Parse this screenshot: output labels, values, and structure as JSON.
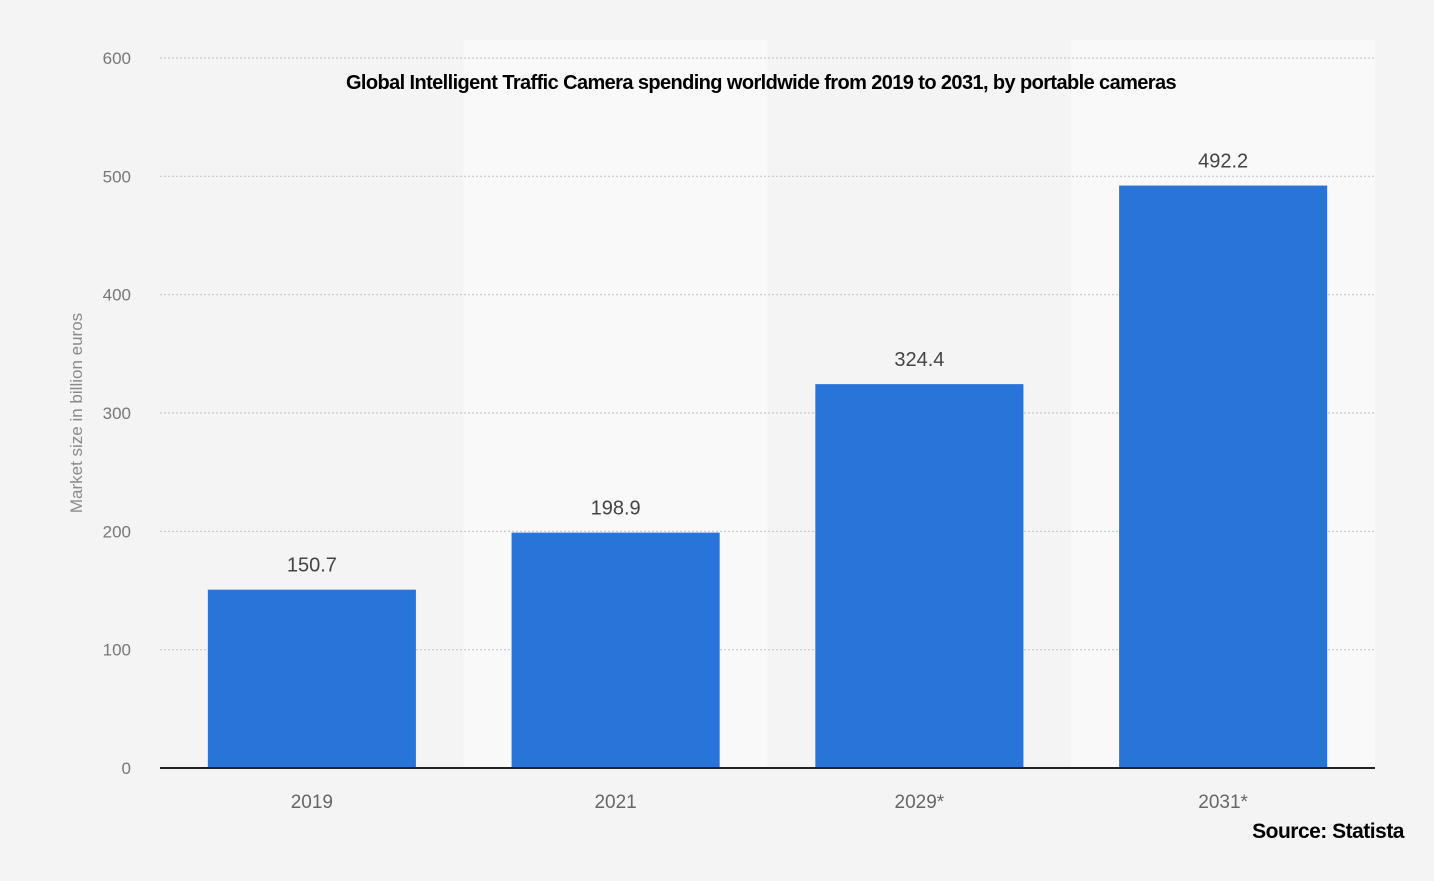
{
  "chart_data": {
    "type": "bar",
    "title": "Global Intelligent Traffic Camera spending worldwide from 2019 to 2031, by portable cameras",
    "xlabel": "",
    "ylabel": "Market size in billion euros",
    "categories": [
      "2019",
      "2021",
      "2029*",
      "2031*"
    ],
    "values": [
      150.7,
      198.9,
      324.4,
      492.2
    ],
    "data_labels": [
      "150.7",
      "198.9",
      "324.4",
      "492.2"
    ],
    "ylim": [
      0,
      600
    ],
    "yticks": [
      0,
      100,
      200,
      300,
      400,
      500,
      600
    ],
    "ytick_labels": [
      "0",
      "100",
      "200",
      "300",
      "400",
      "500",
      "600"
    ],
    "grid": true,
    "legend": "none",
    "source": "Source: Statista",
    "colors": {
      "bar": "#2874d9",
      "background": "#f4f4f4",
      "band_alt": "#f9f9f9",
      "grid": "#c8c8c8",
      "axis": "#222222",
      "tick_text": "#777777",
      "label_text": "#444444"
    }
  }
}
